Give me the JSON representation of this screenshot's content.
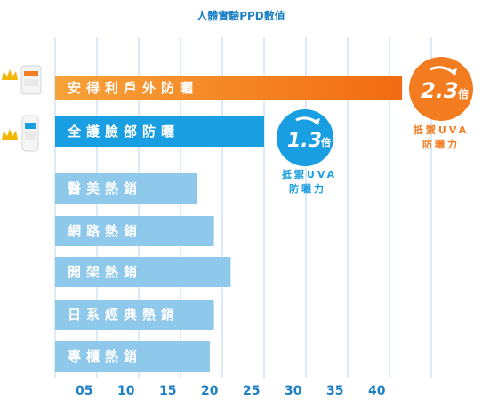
{
  "chart_data": {
    "type": "bar",
    "orientation": "horizontal",
    "title": "人體實驗PPD數值",
    "categories": [
      "安得利戶外防曬",
      "全護臉部防曬",
      "醫美熱銷",
      "網路熱銷",
      "開架熱銷",
      "日系經典熱銷",
      "專櫃熱銷"
    ],
    "values": [
      41.5,
      25,
      17,
      19,
      21,
      19,
      18.5
    ],
    "x_ticks": [
      "05",
      "10",
      "15",
      "20",
      "25",
      "30",
      "35",
      "40"
    ],
    "xlim": [
      0,
      45
    ],
    "grid": true,
    "colors": [
      "#f47c20",
      "#1a9ee2",
      "#8ec8ea",
      "#8ec8ea",
      "#8ec8ea",
      "#8ec8ea",
      "#8ec8ea"
    ],
    "annotations": [
      {
        "value": "2.3",
        "unit": "倍",
        "line1": "抵禦UVA",
        "line2": "防曬力",
        "color": "#f47c20"
      },
      {
        "value": "1.3",
        "unit": "倍",
        "line1": "抵禦UVA",
        "line2": "防曬力",
        "color": "#1a9ee2"
      }
    ]
  },
  "icons": [
    "crown-icon",
    "sunscreen-bottle-icon",
    "crown-icon",
    "sunscreen-tube-icon"
  ]
}
